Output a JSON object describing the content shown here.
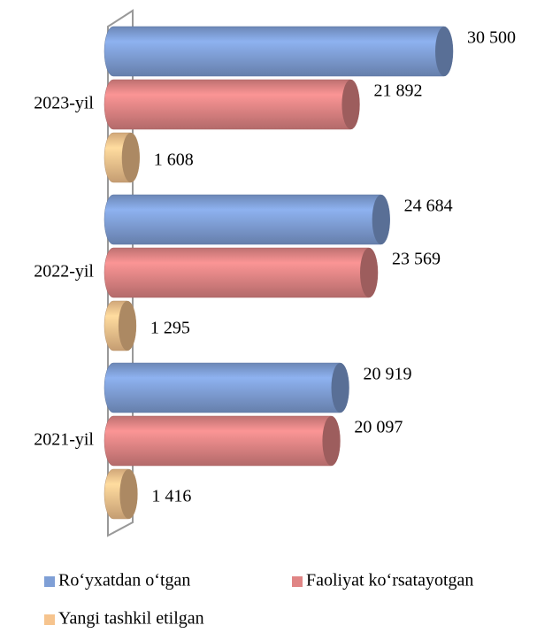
{
  "chart_data": {
    "type": "bar",
    "orientation": "horizontal",
    "categories": [
      "2023-yil",
      "2022-yil",
      "2021-yil"
    ],
    "series": [
      {
        "name": "Ro‘yxatdan o‘tgan",
        "color": "#7f9fd6",
        "values": [
          30500,
          24684,
          20919
        ],
        "value_labels": [
          "30 500",
          "24 684",
          "20 919"
        ]
      },
      {
        "name": "Faoliyat ko‘rsatayotgan",
        "color": "#e08585",
        "values": [
          21892,
          23569,
          20097
        ],
        "value_labels": [
          "21 892",
          "23 569",
          "20 097"
        ]
      },
      {
        "name": "Yangi tashkil etilgan",
        "color": "#f6c48e",
        "values": [
          1608,
          1295,
          1416
        ],
        "value_labels": [
          "1 608",
          "1 295",
          "1 416"
        ]
      }
    ]
  }
}
